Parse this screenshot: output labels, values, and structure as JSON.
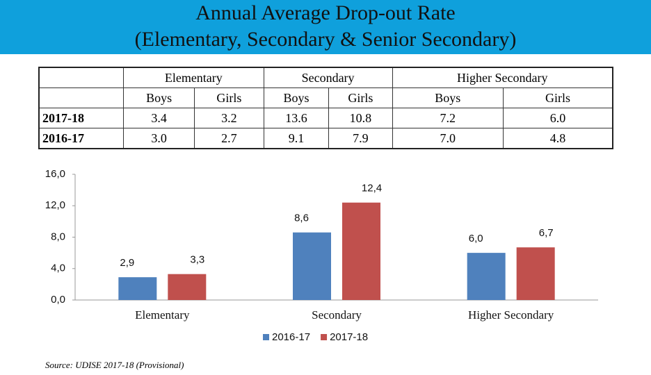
{
  "title": [
    "Annual Average Drop-out Rate",
    "(Elementary, Secondary & Senior Secondary)"
  ],
  "table": {
    "header": [
      "Elementary",
      "Secondary",
      "Higher Secondary"
    ],
    "subheader": [
      "Boys",
      "Girls",
      "Boys",
      "Girls",
      "Boys",
      "Girls"
    ],
    "rows": [
      [
        "2017-18",
        "3.4",
        "3.2",
        "13.6",
        "10.8",
        "7.2",
        "6.0"
      ],
      [
        "2016-17",
        "3.0",
        "2.7",
        "9.1",
        "7.9",
        "7.0",
        "4.8"
      ]
    ]
  },
  "chart_data": {
    "type": "bar",
    "categories": [
      "Elementary",
      "Secondary",
      "Higher Secondary"
    ],
    "series": [
      {
        "name": "2016-17",
        "color": "#4f81bd",
        "values": [
          2.9,
          8.6,
          6.0
        ],
        "value_labels": [
          "2,9",
          "8,6",
          "6,0"
        ]
      },
      {
        "name": "2017-18",
        "color": "#c0504d",
        "values": [
          3.3,
          12.4,
          6.7
        ],
        "value_labels": [
          "3,3",
          "12,4",
          "6,7"
        ]
      }
    ],
    "ylim": [
      0,
      16
    ],
    "yticks": [
      {
        "value": 0,
        "label": "0,0"
      },
      {
        "value": 4,
        "label": "4,0"
      },
      {
        "value": 8,
        "label": "8,0"
      },
      {
        "value": 12,
        "label": "12,0"
      },
      {
        "value": 16,
        "label": "16,0"
      }
    ],
    "legend": "bottom"
  },
  "source": "Source: UDISE 2017-18 (Provisional)"
}
